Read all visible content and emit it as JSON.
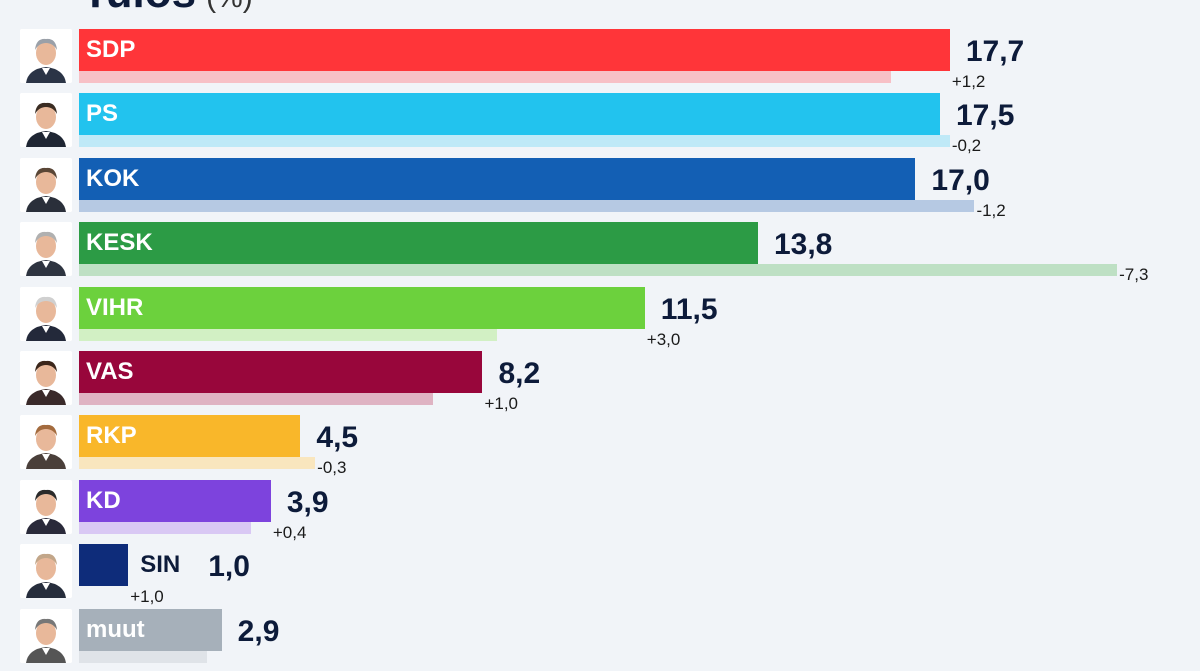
{
  "header": {
    "title": "Tulos",
    "unit": "(%)"
  },
  "colors": {
    "background": "#f1f4f8",
    "text": "#0d1b3a"
  },
  "chart_data": {
    "type": "bar",
    "orientation": "horizontal",
    "title": "Tulos",
    "unit": "(%)",
    "xlim": [
      0,
      25
    ],
    "grid": false,
    "legend": "none",
    "categories": [
      "SDP",
      "PS",
      "KOK",
      "KESK",
      "VIHR",
      "VAS",
      "RKP",
      "KD",
      "SIN",
      "muut"
    ],
    "series": [
      {
        "name": "",
        "values": [
          17.7,
          17.5,
          17.0,
          13.8,
          11.5,
          8.2,
          4.5,
          3.9,
          1.0,
          2.9
        ]
      }
    ],
    "previous_values": [
      16.5,
      17.7,
      18.2,
      21.1,
      8.5,
      7.2,
      4.8,
      3.5,
      0.0,
      2.6
    ],
    "value_labels": [
      "17,7",
      "17,5",
      "17,0",
      "13,8",
      "11,5",
      "8,2",
      "4,5",
      "3,9",
      "1,0",
      "2,9"
    ],
    "change_labels": [
      "+1,2",
      "-0,2",
      "-1,2",
      "-7,3",
      "+3,0",
      "+1,0",
      "-0,3",
      "+0,4",
      "+1,0",
      ""
    ],
    "bar_colors": [
      "#ff3539",
      "#22c3ee",
      "#135fb4",
      "#2c9b45",
      "#6cd13d",
      "#98063b",
      "#f9b72a",
      "#7d43dd",
      "#0e2c7a",
      "#a6b0ba"
    ],
    "prev_bar_colors": [
      "#f7c0c6",
      "#bfe9f7",
      "#b6c9e3",
      "#bee0c4",
      "#d2f0c4",
      "#dfb3c3",
      "#f9e6be",
      "#d9c8f4",
      "#e6ebf1",
      "#dfe3e8"
    ]
  }
}
